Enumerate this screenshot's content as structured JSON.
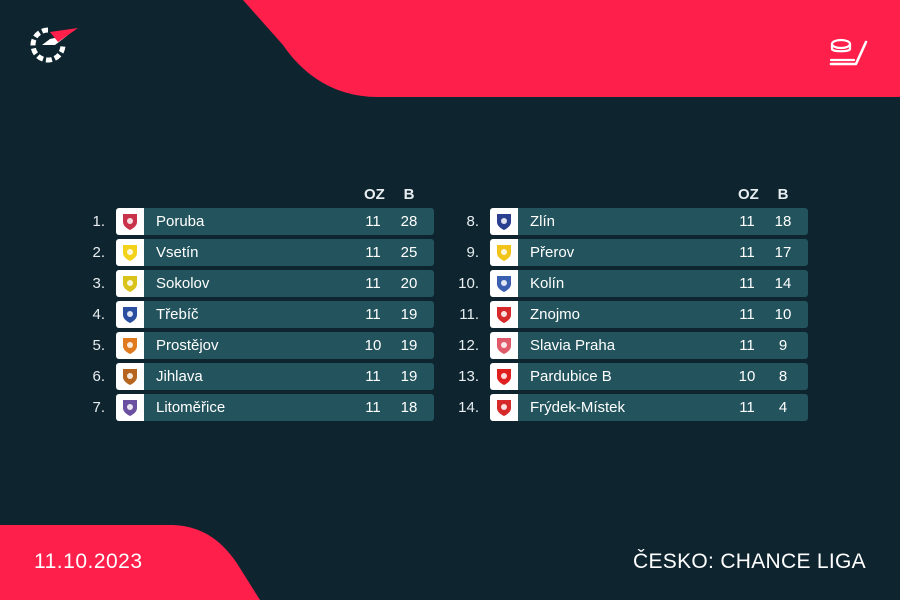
{
  "colors": {
    "background": "#0e2530",
    "accent": "#ff1f4b",
    "row": "#23535c"
  },
  "left_table": {
    "col_gp": "OZ",
    "col_pts": "B",
    "rows": [
      {
        "rank": "1.",
        "team": "Poruba",
        "gp": "11",
        "pts": "28",
        "logo": "poruba-logo",
        "color": "#c8324a"
      },
      {
        "rank": "2.",
        "team": "Vsetín",
        "gp": "11",
        "pts": "25",
        "logo": "vsetin-logo",
        "color": "#f2d21b"
      },
      {
        "rank": "3.",
        "team": "Sokolov",
        "gp": "11",
        "pts": "20",
        "logo": "sokolov-logo",
        "color": "#d9c21a"
      },
      {
        "rank": "4.",
        "team": "Třebíč",
        "gp": "11",
        "pts": "19",
        "logo": "trebic-logo",
        "color": "#2a4fa0"
      },
      {
        "rank": "5.",
        "team": "Prostějov",
        "gp": "10",
        "pts": "19",
        "logo": "prostejov-logo",
        "color": "#e07a1f"
      },
      {
        "rank": "6.",
        "team": "Jihlava",
        "gp": "11",
        "pts": "19",
        "logo": "jihlava-logo",
        "color": "#b5651d"
      },
      {
        "rank": "7.",
        "team": "Litoměřice",
        "gp": "11",
        "pts": "18",
        "logo": "litomerice-logo",
        "color": "#6b4fa0"
      }
    ]
  },
  "right_table": {
    "col_gp": "OZ",
    "col_pts": "B",
    "rows": [
      {
        "rank": "8.",
        "team": "Zlín",
        "gp": "11",
        "pts": "18",
        "logo": "zlin-logo",
        "color": "#2a3f8f"
      },
      {
        "rank": "9.",
        "team": "Přerov",
        "gp": "11",
        "pts": "17",
        "logo": "prerov-logo",
        "color": "#f0c419"
      },
      {
        "rank": "10.",
        "team": "Kolín",
        "gp": "11",
        "pts": "14",
        "logo": "kolin-logo",
        "color": "#3a5fb0"
      },
      {
        "rank": "11.",
        "team": "Znojmo",
        "gp": "11",
        "pts": "10",
        "logo": "znojmo-logo",
        "color": "#d62a2a"
      },
      {
        "rank": "12.",
        "team": "Slavia Praha",
        "gp": "11",
        "pts": "9",
        "logo": "slavia-logo",
        "color": "#e05a6a"
      },
      {
        "rank": "13.",
        "team": "Pardubice B",
        "gp": "10",
        "pts": "8",
        "logo": "pardubice-logo",
        "color": "#e02020"
      },
      {
        "rank": "14.",
        "team": "Frýdek-Místek",
        "gp": "11",
        "pts": "4",
        "logo": "frydek-logo",
        "color": "#d62a2a"
      }
    ]
  },
  "footer": {
    "date": "11.10.2023",
    "league": "ČESKO: CHANCE LIGA"
  },
  "icons": {
    "brand": "flashscore-logo-icon",
    "sport": "hockey-icon"
  }
}
